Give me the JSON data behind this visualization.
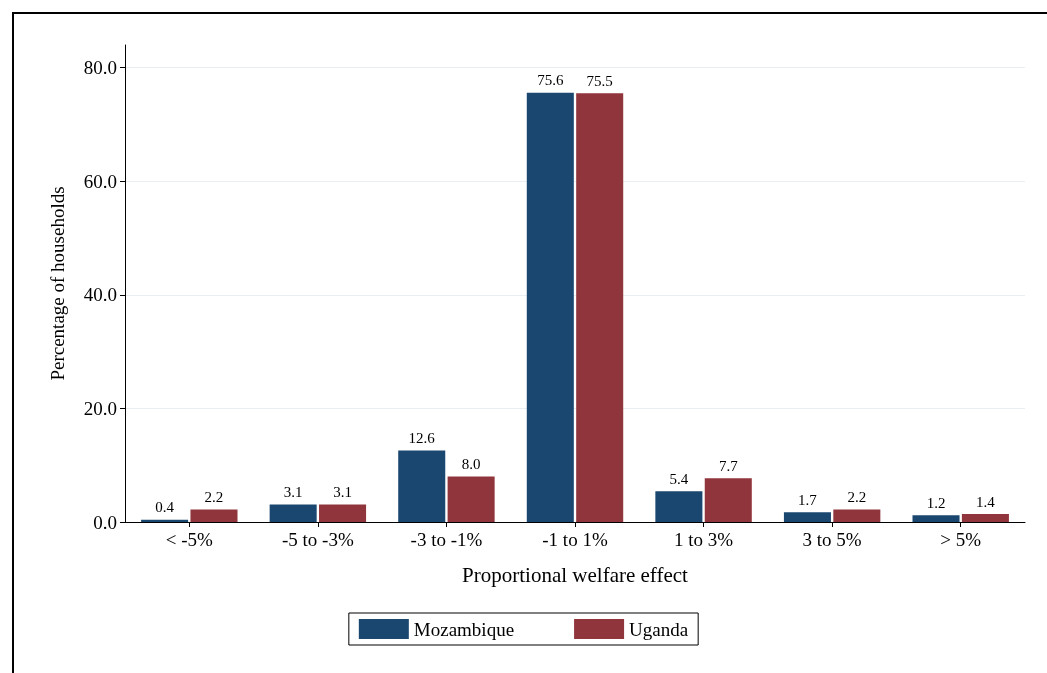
{
  "chart_data": {
    "type": "bar",
    "xlabel": "Proportional welfare effect",
    "ylabel": "Percentage of households",
    "categories": [
      "< -5%",
      "-5 to -3%",
      "-3 to -1%",
      "-1 to 1%",
      "1 to 3%",
      "3 to 5%",
      "> 5%"
    ],
    "series": [
      {
        "name": "Mozambique",
        "color": "#1a476f",
        "values": [
          0.4,
          3.1,
          12.6,
          75.6,
          5.4,
          1.7,
          1.2
        ],
        "value_labels": [
          "0.4",
          "3.1",
          "12.6",
          "75.6",
          "5.4",
          "1.7",
          "1.2"
        ]
      },
      {
        "name": "Uganda",
        "color": "#90353b",
        "values": [
          2.2,
          3.1,
          8.0,
          75.5,
          7.7,
          2.2,
          1.4
        ],
        "value_labels": [
          "2.2",
          "3.1",
          "8.0",
          "75.5",
          "7.7",
          "2.2",
          "1.4"
        ]
      }
    ],
    "ylim": [
      0,
      84
    ],
    "yticks": [
      {
        "value": 0,
        "label": "0.0"
      },
      {
        "value": 20,
        "label": "20.0"
      },
      {
        "value": 40,
        "label": "40.0"
      },
      {
        "value": 60,
        "label": "60.0"
      },
      {
        "value": 80,
        "label": "80.0"
      }
    ],
    "grid": "y",
    "legend": "bottom"
  }
}
